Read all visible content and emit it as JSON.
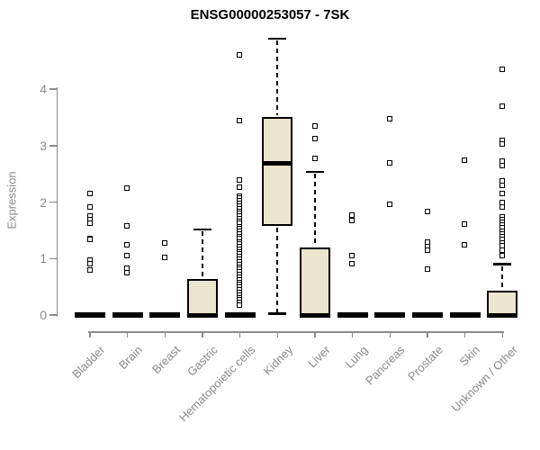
{
  "title": "ENSG00000253057 - 7SK",
  "y_axis": {
    "label": "Expression",
    "ticks": [
      "0",
      "1",
      "2",
      "3",
      "4"
    ]
  },
  "colors": {
    "box_fill": "#ECE6CF",
    "box_border": "#000000",
    "axis": "#8A8A8A",
    "axis_text": "#8A8A8A",
    "title_text": "#000000"
  },
  "chart_data": {
    "type": "boxplot",
    "title": "ENSG00000253057 - 7SK",
    "xlabel": "",
    "ylabel": "Expression",
    "ylim": [
      0,
      4.9
    ],
    "y_ticks": [
      0,
      1,
      2,
      3,
      4
    ],
    "grid": false,
    "categories": [
      "Bladder",
      "Brain",
      "Breast",
      "Gastric",
      "Hematopoietic cells",
      "Kidney",
      "Liver",
      "Lung",
      "Pancreas",
      "Prostate",
      "Skin",
      "Unknown / Other"
    ],
    "series": [
      {
        "name": "Bladder",
        "low": 0,
        "q1": 0,
        "median": 0,
        "q3": 0,
        "high": 0,
        "outliers": [
          2.15,
          1.91,
          1.75,
          1.68,
          1.61,
          1.35,
          1.33,
          0.97,
          0.9,
          0.79
        ]
      },
      {
        "name": "Brain",
        "low": 0,
        "q1": 0,
        "median": 0,
        "q3": 0,
        "high": 0,
        "outliers": [
          2.24,
          1.57,
          1.23,
          1.04,
          0.82,
          0.74
        ]
      },
      {
        "name": "Breast",
        "low": 0,
        "q1": 0,
        "median": 0,
        "q3": 0,
        "high": 0,
        "outliers": [
          1.27,
          1.01
        ]
      },
      {
        "name": "Gastric",
        "low": 0,
        "q1": 0,
        "median": 0,
        "q3": 0.64,
        "high": 1.51,
        "outliers": []
      },
      {
        "name": "Hematopoietic cells",
        "low": 0,
        "q1": 0,
        "median": 0,
        "q3": 0,
        "high": 0,
        "outliers": [
          4.59,
          3.44,
          2.39,
          2.26,
          2.1,
          2.06,
          2.01,
          1.97,
          1.92,
          1.88,
          1.83,
          1.79,
          1.74,
          1.7,
          1.65,
          1.61,
          1.56,
          1.52,
          1.47,
          1.43,
          1.38,
          1.34,
          1.29,
          1.25,
          1.2,
          1.16,
          1.11,
          1.07,
          1.02,
          0.98,
          0.93,
          0.89,
          0.84,
          0.8,
          0.75,
          0.71,
          0.66,
          0.62,
          0.57,
          0.53,
          0.48,
          0.44,
          0.39,
          0.35,
          0.3,
          0.26,
          0.21,
          0.16
        ]
      },
      {
        "name": "Kidney",
        "low": 0.02,
        "q1": 1.58,
        "median": 2.68,
        "q3": 3.51,
        "high": 4.89,
        "outliers": []
      },
      {
        "name": "Liver",
        "low": 0,
        "q1": 0,
        "median": 0,
        "q3": 1.2,
        "high": 2.53,
        "outliers": [
          3.34,
          3.12,
          2.77
        ]
      },
      {
        "name": "Lung",
        "low": 0,
        "q1": 0,
        "median": 0,
        "q3": 0,
        "high": 0,
        "outliers": [
          1.76,
          1.67,
          1.05,
          0.9
        ]
      },
      {
        "name": "Pancreas",
        "low": 0,
        "q1": 0,
        "median": 0,
        "q3": 0,
        "high": 0,
        "outliers": [
          3.47,
          2.69,
          1.96
        ]
      },
      {
        "name": "Prostate",
        "low": 0,
        "q1": 0,
        "median": 0,
        "q3": 0,
        "high": 0,
        "outliers": [
          1.82,
          1.29,
          1.21,
          1.14,
          0.8
        ]
      },
      {
        "name": "Skin",
        "low": 0,
        "q1": 0,
        "median": 0,
        "q3": 0,
        "high": 0,
        "outliers": [
          2.74,
          1.6,
          1.24
        ]
      },
      {
        "name": "Unknown / Other",
        "low": 0,
        "q1": 0,
        "median": 0,
        "q3": 0.43,
        "high": 0.9,
        "outliers": [
          4.35,
          3.69,
          3.08,
          3.02,
          2.71,
          2.63,
          2.36,
          2.28,
          2.14,
          1.99,
          1.91,
          1.73,
          1.68,
          1.63,
          1.58,
          1.53,
          1.48,
          1.43,
          1.38,
          1.33,
          1.27,
          1.22,
          1.14,
          1.05
        ]
      }
    ],
    "legend": null
  }
}
